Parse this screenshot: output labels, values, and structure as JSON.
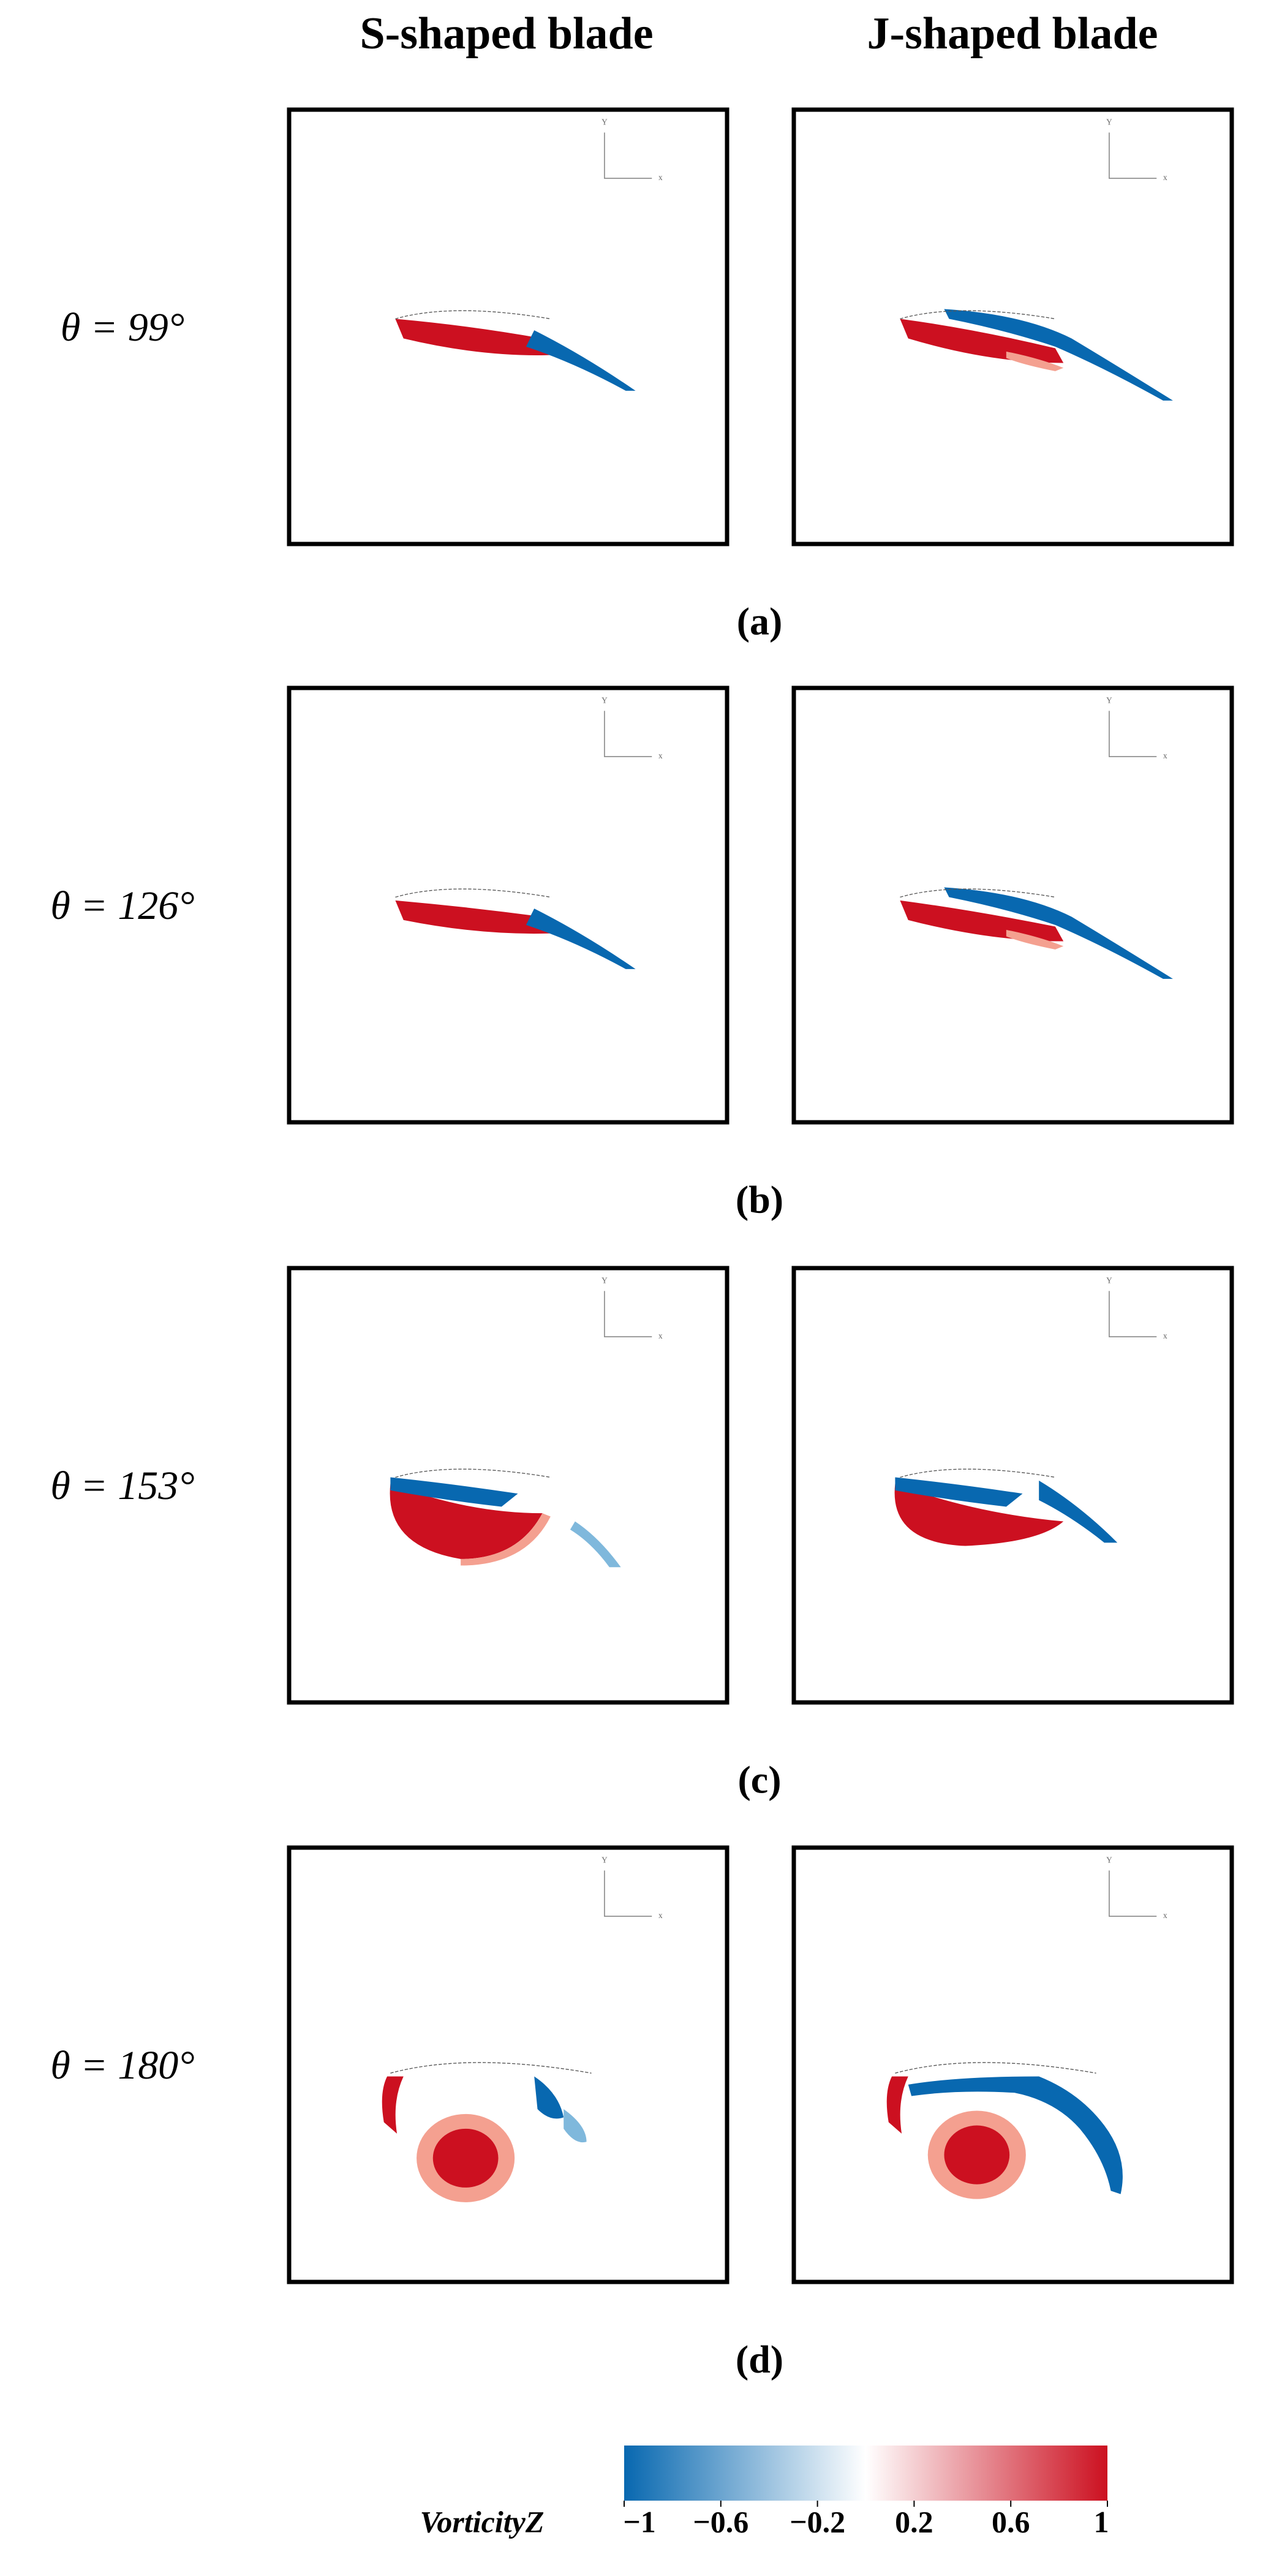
{
  "columns": [
    "S-shaped blade",
    "J-shaped blade"
  ],
  "rows": [
    {
      "label": "θ = 99°",
      "caption": "(a)"
    },
    {
      "label": "θ = 126°",
      "caption": "(b)"
    },
    {
      "label": "θ = 153°",
      "caption": "(c)"
    },
    {
      "label": "θ = 180°",
      "caption": "(d)"
    }
  ],
  "triad": {
    "y": "Y",
    "x": "x"
  },
  "colorbar": {
    "label": "VorticityZ",
    "lim": [
      -1,
      1
    ],
    "ticks": [
      {
        "value": -1,
        "label": "−1"
      },
      {
        "value": -0.6,
        "label": "−0.6"
      },
      {
        "value": -0.2,
        "label": "−0.2"
      },
      0.2,
      0.6,
      1
    ],
    "colors": [
      "#0868b0",
      "#ffffff",
      "#cc1020"
    ]
  }
}
